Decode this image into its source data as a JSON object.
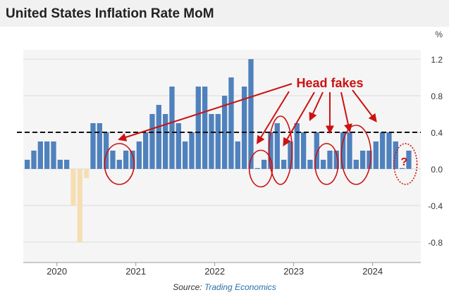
{
  "header": {
    "title": "United States Inflation Rate MoM"
  },
  "footer": {
    "source_prefix": "Source:",
    "source_name": "Trading Economics"
  },
  "colors": {
    "positive_bar": "#4f81bd",
    "negative_bar": "#f5deb3",
    "threshold_line": "#111111",
    "annotation": "#cc1111",
    "grid": "#dcdcdc",
    "plot_background": "#f5f5f5"
  },
  "chart_data": {
    "type": "bar",
    "title": "United States Inflation Rate MoM",
    "ylabel": "%",
    "ylim": [
      -1.0,
      1.3
    ],
    "yticks": [
      1.2,
      0.8,
      0.4,
      0.0,
      -0.4,
      -0.8
    ],
    "ytick_labels": [
      "1.2",
      "0.8",
      "0.4",
      "0.0",
      "-0.4",
      "-0.8"
    ],
    "grid": true,
    "x_tick_labels": [
      "2020",
      "2021",
      "2022",
      "2023",
      "2024"
    ],
    "x_tick_dates": [
      "2020-01",
      "2021-01",
      "2022-01",
      "2023-01",
      "2024-01"
    ],
    "dates": [
      "2019-08",
      "2019-09",
      "2019-10",
      "2019-11",
      "2019-12",
      "2020-01",
      "2020-02",
      "2020-03",
      "2020-04",
      "2020-05",
      "2020-06",
      "2020-07",
      "2020-08",
      "2020-09",
      "2020-10",
      "2020-11",
      "2020-12",
      "2021-01",
      "2021-02",
      "2021-03",
      "2021-04",
      "2021-05",
      "2021-06",
      "2021-07",
      "2021-08",
      "2021-09",
      "2021-10",
      "2021-11",
      "2021-12",
      "2022-01",
      "2022-02",
      "2022-03",
      "2022-04",
      "2022-05",
      "2022-06",
      "2022-07",
      "2022-08",
      "2022-09",
      "2022-10",
      "2022-11",
      "2022-12",
      "2023-01",
      "2023-02",
      "2023-03",
      "2023-04",
      "2023-05",
      "2023-06",
      "2023-07",
      "2023-08",
      "2023-09",
      "2023-10",
      "2023-11",
      "2023-12",
      "2024-01",
      "2024-02",
      "2024-03",
      "2024-04",
      "2024-05",
      "2024-06"
    ],
    "values": [
      0.1,
      0.2,
      0.3,
      0.3,
      0.3,
      0.1,
      0.1,
      -0.4,
      -0.8,
      -0.1,
      0.5,
      0.5,
      0.4,
      0.2,
      0.1,
      0.2,
      0.2,
      0.3,
      0.4,
      0.6,
      0.7,
      0.6,
      0.9,
      0.5,
      0.3,
      0.4,
      0.9,
      0.9,
      0.6,
      0.6,
      0.8,
      1.0,
      0.3,
      0.9,
      1.2,
      0.0,
      0.1,
      0.4,
      0.5,
      0.1,
      0.3,
      0.5,
      0.4,
      0.1,
      0.4,
      0.1,
      0.2,
      0.2,
      0.4,
      0.4,
      0.1,
      0.2,
      0.2,
      0.3,
      0.4,
      0.4,
      0.3,
      0.0,
      0.2
    ],
    "reference_line": {
      "value": 0.4,
      "style": "dashed"
    },
    "annotations": {
      "label": "Head fakes",
      "question_mark": "?",
      "circled_dates": [
        [
          "2020-09",
          "2020-11"
        ],
        [
          "2022-07",
          "2022-08"
        ],
        [
          "2022-10",
          "2022-11"
        ],
        [
          "2023-05",
          "2023-06"
        ],
        [
          "2023-09",
          "2023-11"
        ]
      ],
      "dotted_circle_dates": [
        "2024-05",
        "2024-06"
      ],
      "arrow_targets": [
        "2020-10",
        "2022-07",
        "2022-11",
        "2023-03",
        "2023-06",
        "2023-09",
        "2024-01"
      ]
    }
  }
}
